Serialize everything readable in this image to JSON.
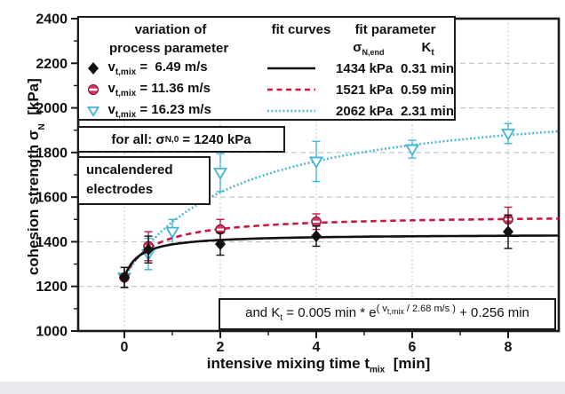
{
  "legend": {
    "col1_line1": "variation of",
    "col1_line2": "process parameter",
    "col2_header": "fit curves",
    "col3_header": "fit parameter",
    "sigma_end_pre": "σ",
    "sigma_end_sub": "N,end",
    "kt_pre": "K",
    "kt_sub": "t",
    "rows": [
      {
        "marker": "black-filled-diamond",
        "v_pre": "v",
        "v_sub": "t,mix",
        "v_val": " =  6.49 m/s",
        "line": "solid-black",
        "sigma_end": "1434 kPa",
        "kt": "0.31 min"
      },
      {
        "marker": "red-striped-circle",
        "v_pre": "v",
        "v_sub": "t,mix",
        "v_val": " = 11.36 m/s",
        "line": "dashed-red",
        "sigma_end": "1521 kPa",
        "kt": "0.59 min"
      },
      {
        "marker": "cyan-open-triangle",
        "v_pre": "v",
        "v_sub": "t,mix",
        "v_val": " = 16.23 m/s",
        "line": "dotted-cyan",
        "sigma_end": "2062 kPa",
        "kt": "2.31 min"
      }
    ]
  },
  "annotations": {
    "for_all_pre": "for all: σ",
    "for_all_sub": "N,0",
    "for_all_post": " = 1240 kPa",
    "electrodes_line1": "uncalendered",
    "electrodes_line2": "electrodes",
    "formula_p1": "and K",
    "formula_p2": "t",
    "formula_p3": " = 0.005 min * e",
    "formula_sup1": "( v",
    "formula_sup2": "t,mix",
    "formula_sup3": " / 2.68 m/s )",
    "formula_p4": " + 0.256 min"
  },
  "axes": {
    "x_label_pre": "intensive mixing time t",
    "x_label_sub": "mix",
    "x_label_post": "  [min]",
    "y_label_pre": "cohesion strength σ",
    "y_label_sub": "N",
    "y_label_post": "  [kPa]"
  },
  "chart_data": {
    "type": "scatter",
    "title": "",
    "xlabel": "intensive mixing time t_mix [min]",
    "ylabel": "cohesion strength sigma_N [kPa]",
    "xlim": [
      -0.96,
      9.05
    ],
    "ylim": [
      1000,
      2400
    ],
    "x_major_ticks": [
      0,
      2,
      4,
      6,
      8
    ],
    "x_minor_step": 1,
    "y_major_ticks": [
      1000,
      1200,
      1400,
      1600,
      1800,
      2000,
      2200,
      2400
    ],
    "y_minor_step": 100,
    "grid": {
      "horizontal": "dashed-gray",
      "vertical": "dotted-gray"
    },
    "grid_color": "#b9b9b9",
    "sigma_N0_kPa": 1240,
    "fit_model": "sigma(t) = sigma_N0 + (sigma_N_end - sigma_N0) * t / (t + K_t)",
    "series": [
      {
        "name": "v_t,mix = 6.49 m/s",
        "color": "#111111",
        "marker": "filled-diamond",
        "line": "solid",
        "fit": {
          "sigma_N_end_kPa": 1434,
          "K_t_min": 0.31
        },
        "points": {
          "x": [
            0,
            0.5,
            2,
            4,
            8
          ],
          "y": [
            1240,
            1365,
            1390,
            1425,
            1445
          ],
          "yerr": [
            45,
            60,
            50,
            45,
            75
          ]
        }
      },
      {
        "name": "v_t,mix = 11.36 m/s",
        "color": "#c81843",
        "marker": "striped-circle",
        "line": "dashed",
        "fit": {
          "sigma_N_end_kPa": 1521,
          "K_t_min": 0.59
        },
        "points": {
          "x": [
            0,
            0.5,
            2,
            4,
            8
          ],
          "y": [
            1240,
            1380,
            1455,
            1490,
            1500
          ],
          "yerr": [
            45,
            65,
            45,
            35,
            55
          ]
        }
      },
      {
        "name": "v_t,mix = 16.23 m/s",
        "color": "#3eb6da",
        "marker": "open-triangle-down",
        "line": "dotted",
        "fit": {
          "sigma_N_end_kPa": 2062,
          "K_t_min": 2.31
        },
        "points": {
          "x": [
            0,
            0.5,
            1,
            2,
            4,
            6,
            8
          ],
          "y": [
            1240,
            1345,
            1445,
            1710,
            1760,
            1815,
            1885
          ],
          "yerr": [
            45,
            70,
            55,
            85,
            90,
            40,
            45
          ]
        }
      }
    ]
  }
}
